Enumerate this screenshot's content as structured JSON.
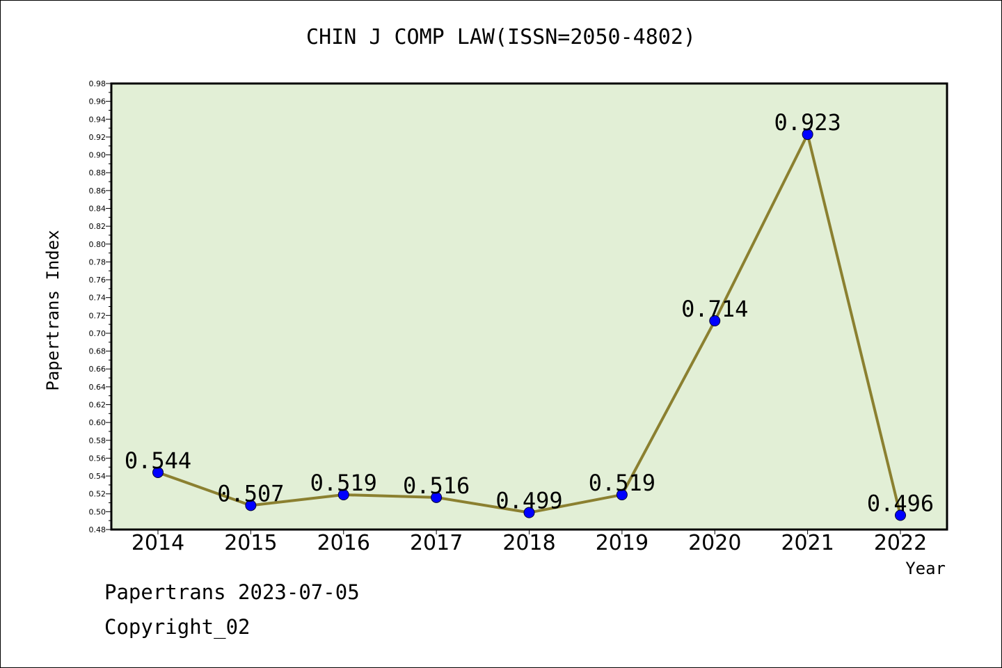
{
  "chart_data": {
    "type": "line",
    "title": "CHIN J COMP LAW(ISSN=2050-4802)",
    "xlabel": "Year",
    "ylabel": "Papertrans Index",
    "categories": [
      "2014",
      "2015",
      "2016",
      "2017",
      "2018",
      "2019",
      "2020",
      "2021",
      "2022"
    ],
    "series": [
      {
        "values": [
          0.544,
          0.507,
          0.519,
          0.516,
          0.499,
          0.519,
          0.714,
          0.923,
          0.496
        ],
        "labels": [
          "0.544",
          "0.507",
          "0.519",
          "0.516",
          "0.499",
          "0.519",
          "0.714",
          "0.923",
          "0.496"
        ],
        "line_color": "#8b8030",
        "marker_color": "#0000ff"
      }
    ],
    "ylim": [
      0.48,
      0.98
    ],
    "yticks": [
      "0.48",
      "0.50",
      "0.52",
      "0.54",
      "0.56",
      "0.58",
      "0.60",
      "0.62",
      "0.64",
      "0.66",
      "0.68",
      "0.70",
      "0.72",
      "0.74",
      "0.76",
      "0.78",
      "0.80",
      "0.82",
      "0.84",
      "0.86",
      "0.88",
      "0.90",
      "0.92",
      "0.94",
      "0.96",
      "0.98"
    ],
    "plot_background": "#e2efd6",
    "grid": false,
    "legend": "none"
  },
  "footer": {
    "line1": "Papertrans 2023-07-05",
    "line2": "Copyright_02"
  }
}
